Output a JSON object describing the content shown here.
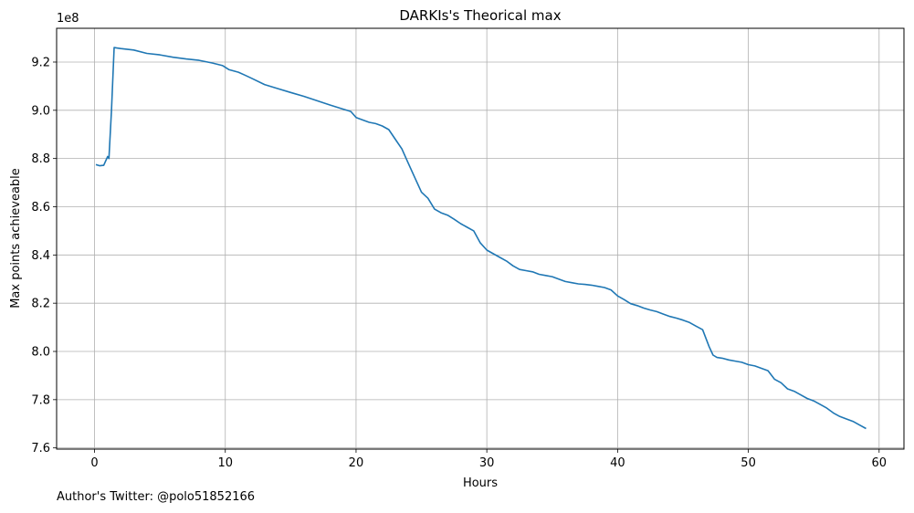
{
  "credit": "Author's Twitter: @polo51852166",
  "chart_data": {
    "type": "line",
    "title": "DARKIs's Theorical max",
    "xlabel": "Hours",
    "ylabel": "Max points achieveable",
    "y_offset_text": "1e8",
    "xlim": [
      -2.9,
      61.9
    ],
    "ylim": [
      7.595,
      9.34
    ],
    "xticks": [
      0,
      10,
      20,
      30,
      40,
      50,
      60
    ],
    "xtick_labels": [
      "0",
      "10",
      "20",
      "30",
      "40",
      "50",
      "60"
    ],
    "yticks": [
      7.6,
      7.8,
      8.0,
      8.2,
      8.4,
      8.6,
      8.8,
      9.0,
      9.2
    ],
    "ytick_labels": [
      "7.6",
      "7.8",
      "8.0",
      "8.2",
      "8.4",
      "8.6",
      "8.8",
      "9.0",
      "9.2"
    ],
    "grid": true,
    "line_color": "#1f77b4",
    "series": [
      {
        "name": "",
        "x": [
          0.1,
          0.4,
          0.7,
          1.0,
          1.1,
          1.3,
          1.5,
          2.0,
          3.0,
          4.0,
          5.0,
          6.0,
          7.0,
          8.0,
          9.0,
          9.8,
          10.3,
          11.0,
          11.5,
          12.0,
          13.0,
          14.0,
          15.0,
          16.0,
          17.0,
          18.0,
          19.0,
          19.6,
          20.0,
          20.5,
          21.0,
          21.5,
          22.0,
          22.5,
          23.0,
          23.5,
          24.0,
          24.5,
          25.0,
          25.5,
          26.0,
          26.5,
          27.0,
          27.5,
          28.0,
          28.5,
          29.0,
          29.5,
          30.0,
          30.5,
          31.0,
          31.5,
          32.0,
          32.5,
          33.0,
          33.5,
          34.0,
          34.5,
          35.0,
          35.5,
          36.0,
          36.5,
          37.0,
          37.5,
          38.0,
          38.5,
          39.0,
          39.5,
          40.0,
          40.5,
          41.0,
          41.5,
          42.0,
          42.5,
          43.0,
          43.5,
          44.0,
          44.5,
          45.0,
          45.5,
          46.0,
          46.5,
          47.0,
          47.3,
          47.6,
          48.0,
          48.5,
          49.0,
          49.5,
          50.0,
          50.5,
          51.0,
          51.5,
          52.0,
          52.5,
          53.0,
          53.5,
          54.0,
          54.5,
          55.0,
          55.5,
          56.0,
          56.5,
          57.0,
          57.5,
          58.0,
          58.5,
          59.0
        ],
        "y": [
          8.775,
          8.77,
          8.772,
          8.808,
          8.8,
          9.0,
          9.26,
          9.256,
          9.25,
          9.236,
          9.23,
          9.22,
          9.213,
          9.207,
          9.196,
          9.185,
          9.168,
          9.158,
          9.146,
          9.133,
          9.107,
          9.09,
          9.074,
          9.058,
          9.04,
          9.022,
          9.005,
          8.995,
          8.97,
          8.96,
          8.95,
          8.945,
          8.935,
          8.92,
          8.88,
          8.84,
          8.78,
          8.72,
          8.66,
          8.635,
          8.59,
          8.575,
          8.565,
          8.548,
          8.53,
          8.515,
          8.5,
          8.45,
          8.42,
          8.405,
          8.39,
          8.375,
          8.355,
          8.34,
          8.335,
          8.33,
          8.32,
          8.315,
          8.31,
          8.3,
          8.29,
          8.285,
          8.28,
          8.278,
          8.275,
          8.27,
          8.265,
          8.255,
          8.23,
          8.215,
          8.198,
          8.19,
          8.18,
          8.172,
          8.165,
          8.155,
          8.145,
          8.138,
          8.13,
          8.12,
          8.105,
          8.09,
          8.02,
          7.985,
          7.975,
          7.972,
          7.965,
          7.96,
          7.955,
          7.945,
          7.94,
          7.93,
          7.92,
          7.885,
          7.87,
          7.845,
          7.835,
          7.82,
          7.805,
          7.795,
          7.78,
          7.765,
          7.745,
          7.73,
          7.72,
          7.71,
          7.695,
          7.68
        ]
      }
    ]
  }
}
